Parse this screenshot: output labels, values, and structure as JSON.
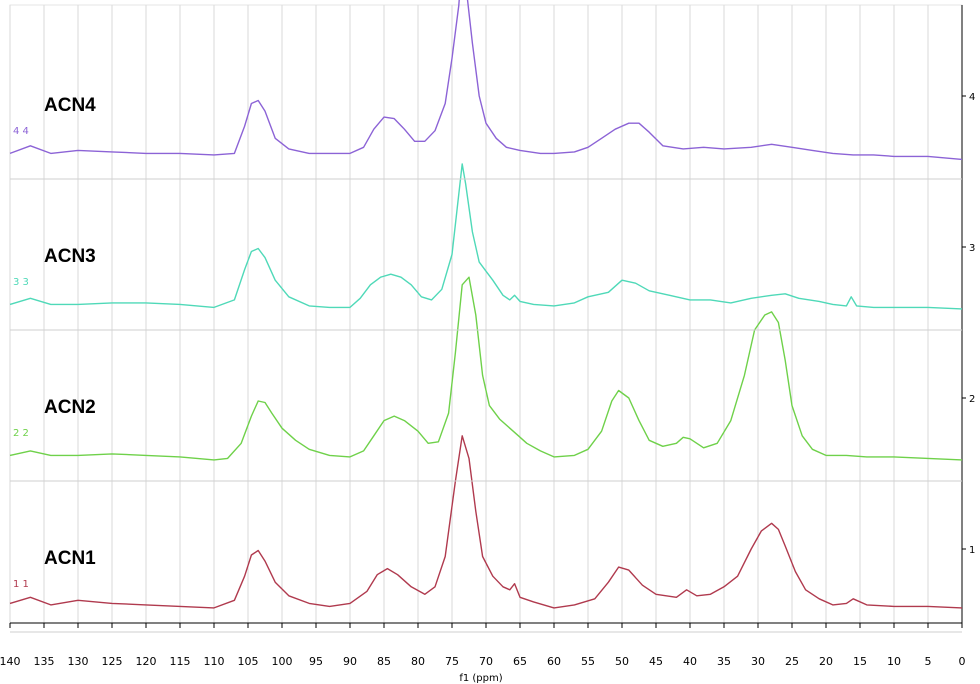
{
  "chart_data": {
    "type": "line",
    "title": "",
    "xlabel": "f1 (ppm)",
    "ylabel": "",
    "xlim": [
      140,
      0
    ],
    "x_reversed": true,
    "x_ticks": [
      140,
      135,
      130,
      125,
      120,
      115,
      110,
      105,
      100,
      95,
      90,
      85,
      80,
      75,
      70,
      65,
      60,
      55,
      50,
      45,
      40,
      35,
      30,
      25,
      20,
      15,
      10,
      5,
      0
    ],
    "right_ticks": [
      "1",
      "2",
      "3",
      "4"
    ],
    "grid": true,
    "series": [
      {
        "name": "ACN1",
        "tag": "1 1",
        "color": "#b03a4e",
        "baseline": 0.6,
        "x": [
          140,
          137,
          134,
          130,
          125,
          120,
          115,
          110,
          107,
          105.5,
          104.5,
          103.5,
          102.5,
          101,
          99,
          96,
          93,
          90,
          87.5,
          86,
          84.5,
          83,
          81,
          79,
          77.5,
          76,
          74.5,
          73.5,
          72.5,
          71.5,
          70.5,
          69,
          67.5,
          66.5,
          65.8,
          65,
          63,
          60,
          57,
          54,
          52,
          50.5,
          49,
          47,
          45,
          42,
          40.5,
          39,
          37,
          35,
          33,
          31,
          29.5,
          28,
          27,
          26,
          24.5,
          23,
          21,
          19,
          17,
          16,
          14,
          10,
          5,
          0
        ],
        "y": [
          0.64,
          0.68,
          0.63,
          0.66,
          0.64,
          0.63,
          0.62,
          0.61,
          0.66,
          0.82,
          0.96,
          0.99,
          0.92,
          0.78,
          0.69,
          0.64,
          0.62,
          0.64,
          0.72,
          0.83,
          0.87,
          0.83,
          0.75,
          0.7,
          0.75,
          0.95,
          1.45,
          1.75,
          1.6,
          1.25,
          0.95,
          0.82,
          0.75,
          0.73,
          0.77,
          0.68,
          0.65,
          0.61,
          0.63,
          0.67,
          0.78,
          0.88,
          0.86,
          0.76,
          0.7,
          0.68,
          0.73,
          0.69,
          0.7,
          0.75,
          0.82,
          1.0,
          1.12,
          1.17,
          1.13,
          1.02,
          0.85,
          0.73,
          0.67,
          0.63,
          0.64,
          0.67,
          0.63,
          0.62,
          0.62,
          0.61
        ]
      },
      {
        "name": "ACN2",
        "tag": "2 2",
        "color": "#6fd14a",
        "baseline": 1.6,
        "x": [
          140,
          137,
          134,
          130,
          125,
          120,
          115,
          110,
          108,
          106,
          104.5,
          103.5,
          102.5,
          101.5,
          100,
          98,
          96,
          93,
          90,
          88,
          86.5,
          85,
          83.5,
          82,
          80,
          78.5,
          77,
          75.5,
          74.5,
          73.5,
          72.5,
          71.5,
          70.5,
          69.5,
          68,
          66.5,
          65.5,
          64,
          62,
          60,
          57,
          55,
          53,
          51.5,
          50.5,
          49,
          47.5,
          46,
          44,
          42,
          41,
          40,
          38,
          36,
          34,
          32,
          30.5,
          29,
          28,
          27,
          26,
          25,
          23.5,
          22,
          20,
          17,
          14,
          10,
          5,
          0
        ],
        "y": [
          1.62,
          1.65,
          1.62,
          1.62,
          1.63,
          1.62,
          1.61,
          1.59,
          1.6,
          1.7,
          1.88,
          1.98,
          1.97,
          1.9,
          1.8,
          1.72,
          1.66,
          1.62,
          1.61,
          1.65,
          1.75,
          1.85,
          1.88,
          1.85,
          1.78,
          1.7,
          1.71,
          1.9,
          2.3,
          2.75,
          2.8,
          2.55,
          2.15,
          1.95,
          1.86,
          1.8,
          1.76,
          1.7,
          1.65,
          1.61,
          1.62,
          1.66,
          1.78,
          1.98,
          2.05,
          2.0,
          1.85,
          1.72,
          1.68,
          1.7,
          1.74,
          1.73,
          1.67,
          1.7,
          1.85,
          2.15,
          2.45,
          2.55,
          2.57,
          2.5,
          2.25,
          1.95,
          1.75,
          1.66,
          1.62,
          1.62,
          1.61,
          1.61,
          1.6,
          1.59
        ]
      },
      {
        "name": "ACN3",
        "tag": "3 3",
        "color": "#4fd9b8",
        "baseline": 2.6,
        "x": [
          140,
          137,
          134,
          130,
          125,
          120,
          115,
          110,
          107,
          105.5,
          104.5,
          103.5,
          102.5,
          101,
          99,
          96,
          93,
          90,
          88.5,
          87,
          85.5,
          84,
          82.5,
          81,
          79.5,
          78,
          76.5,
          75,
          74,
          73.5,
          73,
          72,
          71,
          70,
          69,
          67.5,
          66.5,
          65.8,
          65,
          63,
          60,
          57,
          55,
          52,
          50,
          48,
          46,
          43,
          40,
          37,
          34,
          31,
          28,
          26,
          24,
          21,
          19,
          17,
          16.3,
          15.5,
          13,
          10,
          5,
          0
        ],
        "y": [
          2.62,
          2.66,
          2.62,
          2.62,
          2.63,
          2.63,
          2.62,
          2.6,
          2.65,
          2.85,
          2.97,
          2.99,
          2.93,
          2.78,
          2.67,
          2.61,
          2.6,
          2.6,
          2.66,
          2.75,
          2.8,
          2.82,
          2.8,
          2.75,
          2.67,
          2.65,
          2.72,
          2.95,
          3.35,
          3.55,
          3.42,
          3.1,
          2.9,
          2.84,
          2.78,
          2.68,
          2.65,
          2.68,
          2.64,
          2.62,
          2.61,
          2.63,
          2.67,
          2.7,
          2.78,
          2.76,
          2.71,
          2.68,
          2.65,
          2.65,
          2.63,
          2.66,
          2.68,
          2.69,
          2.66,
          2.64,
          2.62,
          2.61,
          2.67,
          2.61,
          2.6,
          2.6,
          2.6,
          2.59
        ]
      },
      {
        "name": "ACN4",
        "tag": "4 4",
        "color": "#8c63d6",
        "baseline": 3.6,
        "x": [
          140,
          137,
          134,
          130,
          125,
          120,
          115,
          110,
          107,
          105.5,
          104.5,
          103.5,
          102.5,
          101,
          99,
          96,
          93,
          90,
          88,
          86.5,
          85,
          83.5,
          82,
          80.5,
          79,
          77.5,
          76,
          75,
          74,
          73.5,
          73,
          72,
          71,
          70,
          68.5,
          67,
          65,
          62,
          60,
          57,
          55,
          53,
          51,
          49,
          47.5,
          46,
          44,
          41,
          38,
          35,
          31,
          28,
          25,
          22,
          19,
          16,
          13,
          10,
          5,
          0
        ],
        "y": [
          3.62,
          3.67,
          3.62,
          3.64,
          3.63,
          3.62,
          3.62,
          3.61,
          3.62,
          3.8,
          3.95,
          3.97,
          3.9,
          3.72,
          3.65,
          3.62,
          3.62,
          3.62,
          3.66,
          3.78,
          3.86,
          3.85,
          3.78,
          3.7,
          3.7,
          3.77,
          3.95,
          4.25,
          4.6,
          4.9,
          4.75,
          4.35,
          4.0,
          3.82,
          3.72,
          3.66,
          3.64,
          3.62,
          3.62,
          3.63,
          3.66,
          3.72,
          3.78,
          3.82,
          3.82,
          3.76,
          3.67,
          3.65,
          3.66,
          3.65,
          3.66,
          3.68,
          3.66,
          3.64,
          3.62,
          3.61,
          3.61,
          3.6,
          3.6,
          3.58
        ]
      }
    ]
  }
}
